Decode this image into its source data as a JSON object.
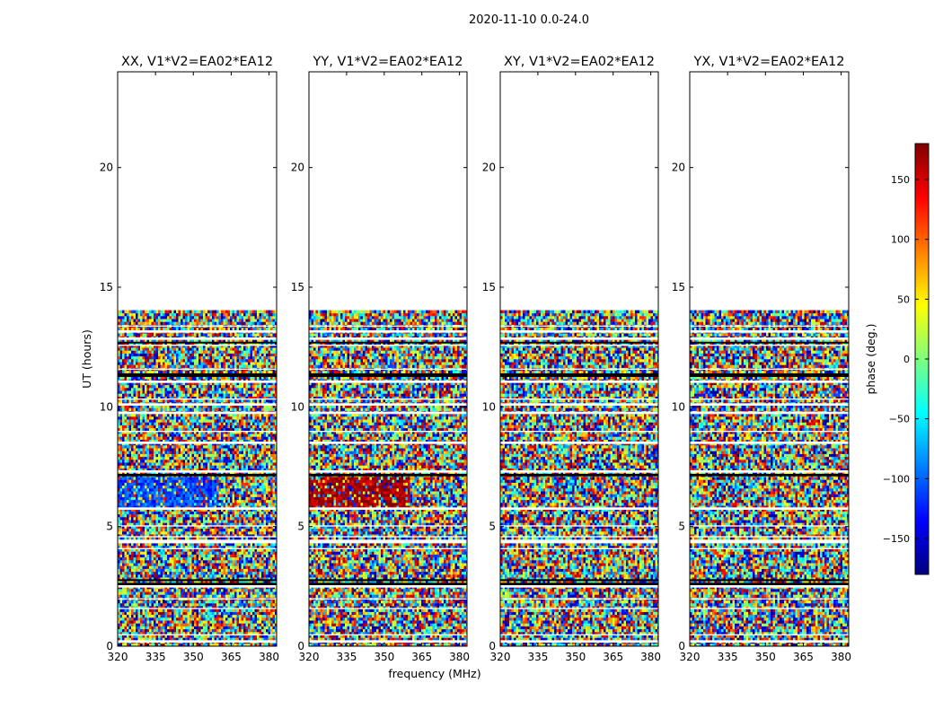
{
  "chart_data": {
    "type": "heatmap",
    "suptitle": "2020-11-10 0.0-24.0",
    "xlabel": "frequency (MHz)",
    "ylabel": "UT (hours)",
    "xlim": [
      320,
      383
    ],
    "ylim": [
      0,
      24
    ],
    "xticks": [
      320,
      335,
      350,
      365,
      380
    ],
    "yticks": [
      0,
      5,
      10,
      15,
      20
    ],
    "data_extent_hours": [
      0,
      14
    ],
    "colorbar": {
      "label": "phase (deg.)",
      "range": [
        -180,
        180
      ],
      "ticks": [
        150,
        100,
        50,
        0,
        -50,
        -100,
        -150
      ],
      "tick_labels": [
        "150",
        "100",
        "50",
        "0",
        "−50",
        "−100",
        "−150"
      ],
      "colormap": [
        "#00007f",
        "#0000ff",
        "#007fff",
        "#00ffff",
        "#7fff7f",
        "#ffff00",
        "#ff7f00",
        "#ff0000",
        "#7f0000"
      ]
    },
    "panels": [
      {
        "id": "xx",
        "title": "XX, V1*V2=EA02*EA12",
        "coherent_bands": [
          {
            "ut": [
              5.8,
              7.0
            ],
            "freq": [
              320,
              360
            ],
            "phase": -110
          }
        ]
      },
      {
        "id": "yy",
        "title": "YY, V1*V2=EA02*EA12",
        "coherent_bands": [
          {
            "ut": [
              5.8,
              7.0
            ],
            "freq": [
              320,
              360
            ],
            "phase": 170
          }
        ]
      },
      {
        "id": "xy",
        "title": "XY, V1*V2=EA02*EA12",
        "coherent_bands": []
      },
      {
        "id": "yx",
        "title": "YX, V1*V2=EA02*EA12",
        "coherent_bands": []
      }
    ]
  }
}
